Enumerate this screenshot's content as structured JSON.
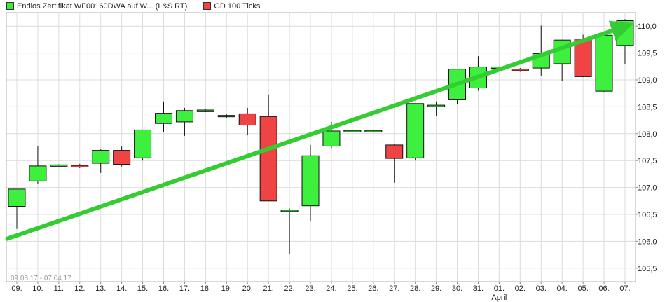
{
  "legend": [
    {
      "label": "Endlos Zertifikat WF00160DWA auf W... (L&S RT)",
      "color": "#3ee83e"
    },
    {
      "label": "GD 100 Ticks",
      "color": "#ee4444"
    }
  ],
  "date_range": "09.03.17 - 07.04.17",
  "colors": {
    "up": "#3ef03e",
    "down": "#f04444",
    "trend": "#33cc33",
    "grid": "#dcdcdc"
  },
  "chart_data": {
    "type": "candlestick",
    "x_labels": [
      "09.",
      "10.",
      "11.",
      "12.",
      "13.",
      "14.",
      "15.",
      "16.",
      "17.",
      "18.",
      "19.",
      "20.",
      "21.",
      "22.",
      "23.",
      "24.",
      "25.",
      "26.",
      "27.",
      "28.",
      "29.",
      "30.",
      "31.",
      "01.",
      "02.",
      "03.",
      "04.",
      "05.",
      "06.",
      "07."
    ],
    "x_sublabel": {
      "index": 23,
      "text": "April"
    },
    "ylim": [
      105.25,
      110.25
    ],
    "y_ticks": [
      "105,5",
      "106,0",
      "106,5",
      "107,0",
      "107,5",
      "108,0",
      "108,5",
      "109,0",
      "109,5",
      "110,0"
    ],
    "y_tick_values": [
      105.5,
      106.0,
      106.5,
      107.0,
      107.5,
      108.0,
      108.5,
      109.0,
      109.5,
      110.0
    ],
    "candles": [
      {
        "open": 106.65,
        "high": 106.97,
        "low": 106.23,
        "close": 106.97
      },
      {
        "open": 107.12,
        "high": 107.77,
        "low": 107.07,
        "close": 107.4
      },
      {
        "open": 107.42,
        "high": 107.43,
        "low": 107.41,
        "close": 107.42
      },
      {
        "open": 107.41,
        "high": 107.44,
        "low": 107.36,
        "close": 107.38
      },
      {
        "open": 107.45,
        "high": 107.71,
        "low": 107.27,
        "close": 107.69
      },
      {
        "open": 107.69,
        "high": 107.76,
        "low": 107.39,
        "close": 107.43
      },
      {
        "open": 107.55,
        "high": 108.07,
        "low": 107.5,
        "close": 108.07
      },
      {
        "open": 108.19,
        "high": 108.6,
        "low": 108.03,
        "close": 108.38
      },
      {
        "open": 108.22,
        "high": 108.48,
        "low": 107.96,
        "close": 108.43
      },
      {
        "open": 108.41,
        "high": 108.46,
        "low": 108.4,
        "close": 108.44
      },
      {
        "open": 108.34,
        "high": 108.36,
        "low": 108.29,
        "close": 108.34
      },
      {
        "open": 108.37,
        "high": 108.48,
        "low": 107.97,
        "close": 108.16
      },
      {
        "open": 108.32,
        "high": 108.73,
        "low": 106.75,
        "close": 106.75
      },
      {
        "open": 106.58,
        "high": 106.61,
        "low": 105.77,
        "close": 106.58
      },
      {
        "open": 106.66,
        "high": 107.79,
        "low": 106.38,
        "close": 107.59
      },
      {
        "open": 107.77,
        "high": 108.22,
        "low": 107.73,
        "close": 108.05
      },
      {
        "open": 108.04,
        "high": 108.07,
        "low": 108.03,
        "close": 108.06
      },
      {
        "open": 108.04,
        "high": 108.08,
        "low": 108.02,
        "close": 108.06
      },
      {
        "open": 107.79,
        "high": 107.81,
        "low": 107.09,
        "close": 107.54
      },
      {
        "open": 107.55,
        "high": 108.56,
        "low": 107.5,
        "close": 108.56
      },
      {
        "open": 108.53,
        "high": 108.6,
        "low": 108.33,
        "close": 108.53
      },
      {
        "open": 108.63,
        "high": 109.2,
        "low": 108.55,
        "close": 109.2
      },
      {
        "open": 108.85,
        "high": 109.44,
        "low": 108.8,
        "close": 109.24
      },
      {
        "open": 109.24,
        "high": 109.25,
        "low": 109.23,
        "close": 109.24
      },
      {
        "open": 109.2,
        "high": 109.22,
        "low": 109.15,
        "close": 109.17
      },
      {
        "open": 109.22,
        "high": 110.01,
        "low": 109.08,
        "close": 109.49
      },
      {
        "open": 109.3,
        "high": 109.74,
        "low": 108.98,
        "close": 109.74
      },
      {
        "open": 109.76,
        "high": 109.84,
        "low": 109.05,
        "close": 109.06
      },
      {
        "open": 108.79,
        "high": 109.83,
        "low": 108.78,
        "close": 109.83
      },
      {
        "open": 109.64,
        "high": 110.13,
        "low": 109.29,
        "close": 110.1
      }
    ],
    "trendline": {
      "from": {
        "x_index": -0.45,
        "y": 106.05
      },
      "to": {
        "x_index": 29.4,
        "y": 110.05
      }
    }
  }
}
